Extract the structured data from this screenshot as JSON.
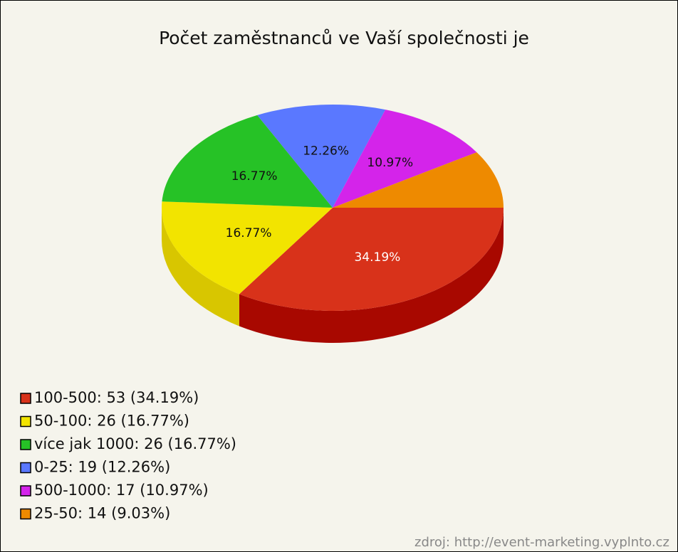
{
  "chart_data": {
    "type": "pie",
    "title": "Počet zaměstnanců ve Vaší společnosti je",
    "categories": [
      "100-500",
      "50-100",
      "více jak 1000",
      "0-25",
      "500-1000",
      "25-50"
    ],
    "values": [
      34.19,
      16.77,
      16.77,
      12.26,
      10.97,
      9.03
    ],
    "value_labels": [
      "34.19%",
      "16.77%",
      "16.77%",
      "12.26%",
      "10.97%",
      null
    ],
    "legend_labels": [
      "100-500: 53 (34.19%)",
      "50-100: 26 (16.77%)",
      "více jak 1000: 26 (16.77%)",
      "0-25: 19 (12.26%)",
      "500-1000: 17 (10.97%)",
      "25-50: 14 (9.03%)"
    ],
    "colors": [
      "#d8321a",
      "#f2e400",
      "#26c226",
      "#5a78ff",
      "#d424ea",
      "#ee8a00"
    ],
    "side_colors": [
      "#a80800",
      "#d8c600",
      "#1a9a1a",
      "#3a55c8",
      "#a010b0",
      "#b86400"
    ],
    "legend": "bottom-left",
    "source": "zdroj: http://event-marketing.vyplnto.cz"
  }
}
